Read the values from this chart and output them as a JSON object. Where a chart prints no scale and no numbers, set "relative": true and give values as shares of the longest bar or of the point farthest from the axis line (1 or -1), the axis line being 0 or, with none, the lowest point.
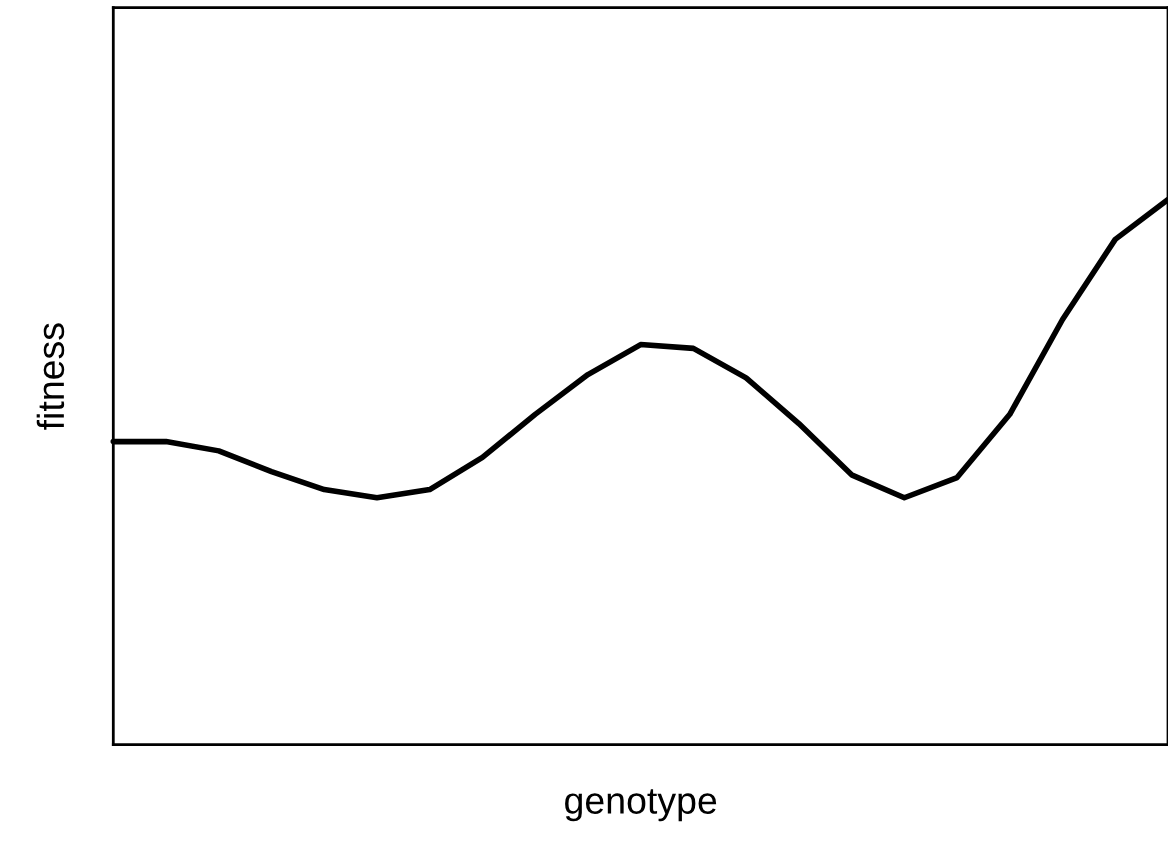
{
  "chart_data": {
    "type": "line",
    "relative": true,
    "xlabel": "genotype",
    "ylabel": "fitness",
    "categories": [
      null,
      null,
      null,
      null,
      null,
      null,
      null,
      null,
      null,
      null,
      null,
      null,
      null,
      null,
      null,
      null,
      null,
      null,
      null,
      null,
      null
    ],
    "series": [
      {
        "color": "#000000",
        "values": [
          0.556,
          0.556,
          0.539,
          0.501,
          0.468,
          0.453,
          0.468,
          0.527,
          0.606,
          0.679,
          0.734,
          0.727,
          0.673,
          0.589,
          0.495,
          0.453,
          0.49,
          0.606,
          0.78,
          0.927,
          1.0
        ]
      }
    ],
    "tick_labels": false
  }
}
